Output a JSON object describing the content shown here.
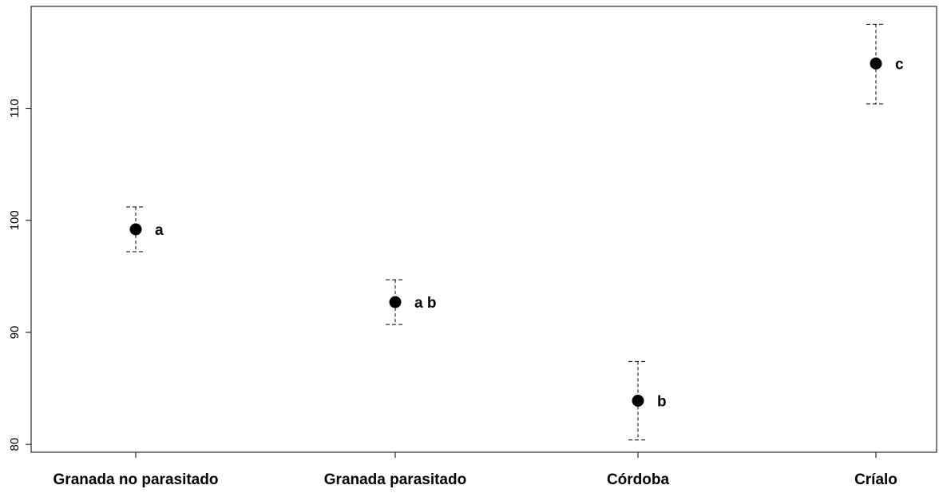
{
  "chart_data": {
    "type": "scatter",
    "categories": [
      "Granada no parasitado",
      "Granada parasitado",
      "Córdoba",
      "Críalo"
    ],
    "series": [
      {
        "values": [
          99.2,
          92.7,
          83.9,
          114.0
        ],
        "lower": [
          97.2,
          90.7,
          80.4,
          110.4
        ],
        "upper": [
          101.2,
          94.7,
          87.4,
          117.5
        ],
        "labels": [
          "a",
          "a b",
          "b",
          "c"
        ]
      }
    ],
    "yticks": [
      80,
      90,
      100,
      110
    ],
    "ylim": [
      79.3,
      119.1
    ],
    "title": "",
    "xlabel": "",
    "ylabel": "",
    "grid": false,
    "colors": {
      "marker": "#000000",
      "axis": "#000000",
      "errorbar": "#000000"
    }
  }
}
